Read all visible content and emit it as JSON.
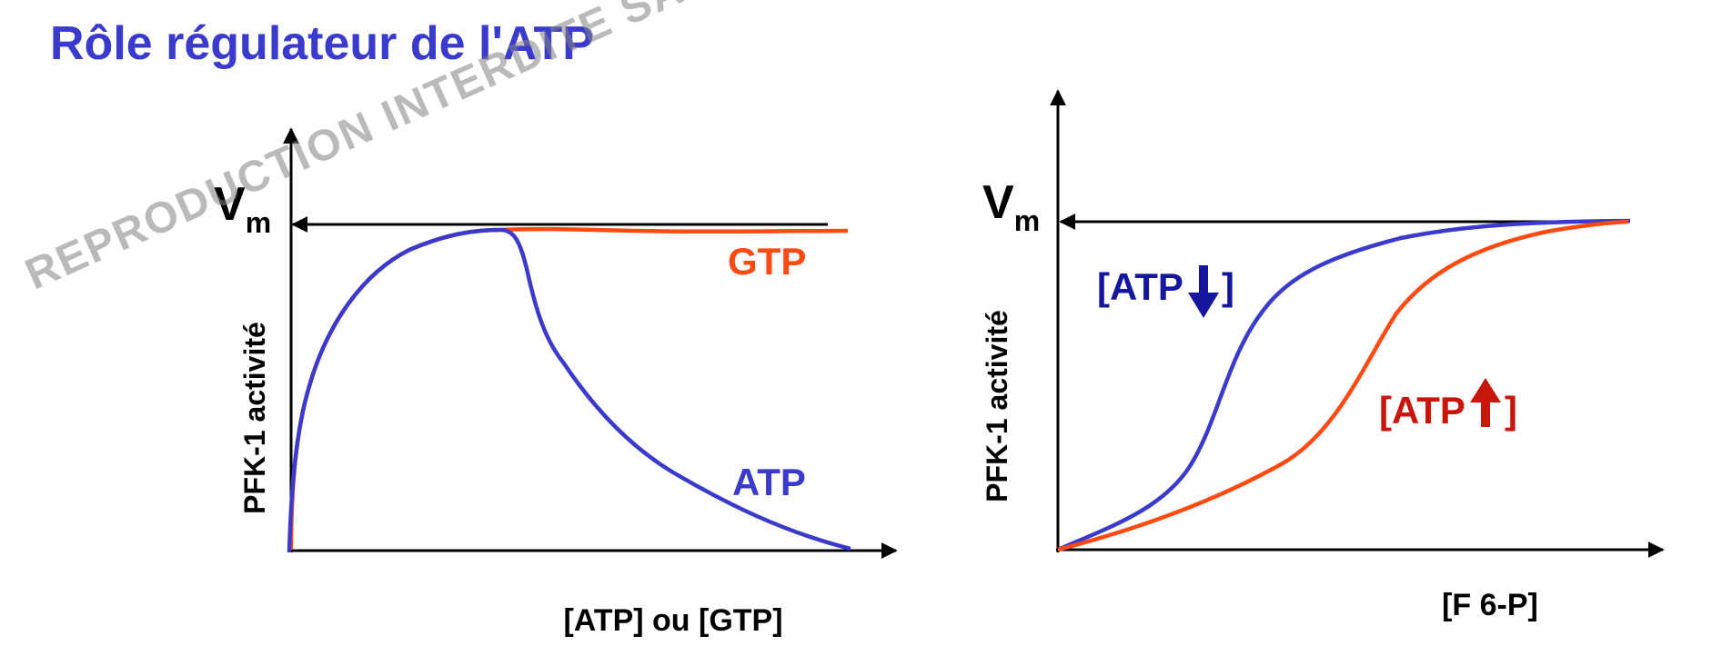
{
  "title": "Rôle régulateur de l'ATP",
  "watermark": "REPRODUCTION INTERDITE SANS L'ACCORD",
  "colors": {
    "title": "#3a3acc",
    "blue": "#3a3acc",
    "red": "#ff4a12",
    "dark_blue": "#15159e",
    "dark_red": "#c8160c",
    "axis": "#000000"
  },
  "chart_data": [
    {
      "type": "line",
      "ylabel": "PFK-1 activité",
      "xlabel": "[ATP] ou [GTP]",
      "vmax_label": "V",
      "vmax_sub": "m",
      "series": [
        {
          "name": "GTP",
          "color": "#ff4a12",
          "x": [
            0,
            0.1,
            0.2,
            0.3,
            0.38,
            0.45,
            0.6,
            0.8,
            1.0
          ],
          "y": [
            0,
            0.55,
            0.82,
            0.95,
            0.99,
            0.99,
            0.98,
            0.98,
            0.98
          ]
        },
        {
          "name": "ATP",
          "color": "#3a3acc",
          "x": [
            0,
            0.1,
            0.2,
            0.3,
            0.38,
            0.45,
            0.6,
            0.8,
            1.0
          ],
          "y": [
            0,
            0.55,
            0.82,
            0.95,
            0.99,
            0.65,
            0.4,
            0.18,
            0.01
          ]
        }
      ]
    },
    {
      "type": "line",
      "ylabel": "PFK-1 activité",
      "xlabel": "[F 6-P]",
      "vmax_label": "V",
      "vmax_sub": "m",
      "series": [
        {
          "name": "[ATP",
          "arrow": "down",
          "color": "#3a3acc",
          "label_color": "#15159e",
          "x": [
            0,
            0.1,
            0.2,
            0.3,
            0.4,
            0.5,
            0.6,
            0.8,
            1.0
          ],
          "y": [
            0,
            0.15,
            0.5,
            0.8,
            0.9,
            0.95,
            0.98,
            1.0,
            1.0
          ]
        },
        {
          "name": "[ATP",
          "arrow": "up",
          "color": "#ff4a12",
          "label_color": "#c8160c",
          "x": [
            0,
            0.1,
            0.2,
            0.3,
            0.4,
            0.5,
            0.6,
            0.8,
            1.0
          ],
          "y": [
            0,
            0.1,
            0.2,
            0.35,
            0.55,
            0.75,
            0.88,
            0.97,
            1.0
          ]
        }
      ]
    }
  ]
}
